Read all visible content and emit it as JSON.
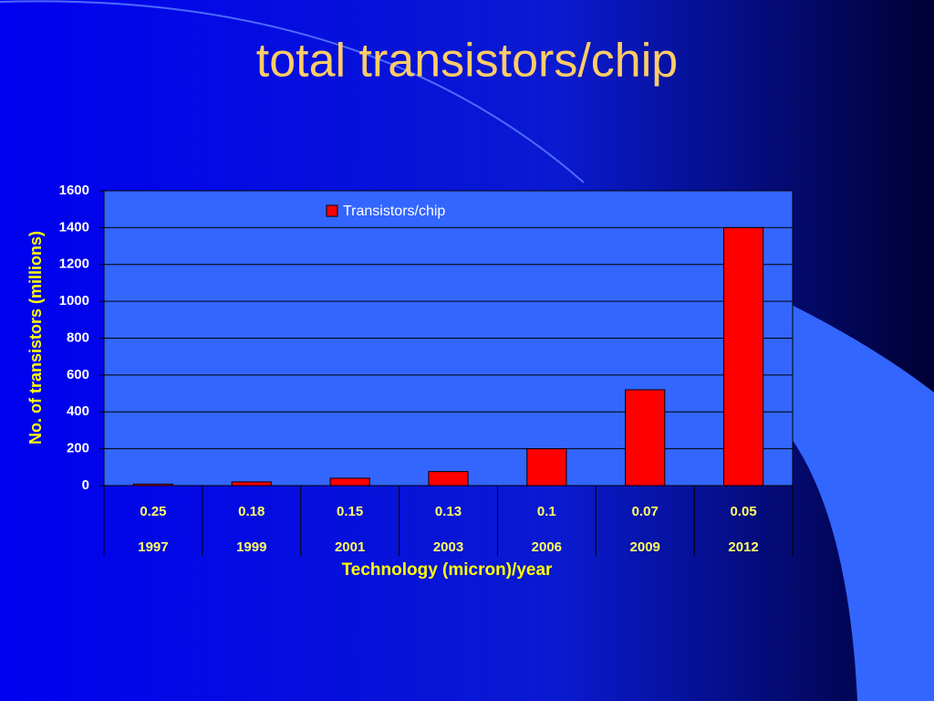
{
  "chart_data": {
    "type": "bar",
    "title": "total transistors/chip",
    "categories": [
      "0.25",
      "0.18",
      "0.15",
      "0.13",
      "0.1",
      "0.07",
      "0.05"
    ],
    "categories_year": [
      "1997",
      "1999",
      "2001",
      "2003",
      "2006",
      "2009",
      "2012"
    ],
    "series": [
      {
        "name": "Transistors/chip",
        "color": "#ff0000",
        "values": [
          8,
          20,
          40,
          76,
          200,
          520,
          1400
        ]
      }
    ],
    "x_label": "Technology (micron)/year",
    "y_label": "No. of transistors (millions)",
    "ylim": [
      0,
      1600
    ],
    "yticks": [
      0,
      200,
      400,
      600,
      800,
      1000,
      1200,
      1400,
      1600
    ],
    "grid": true
  }
}
